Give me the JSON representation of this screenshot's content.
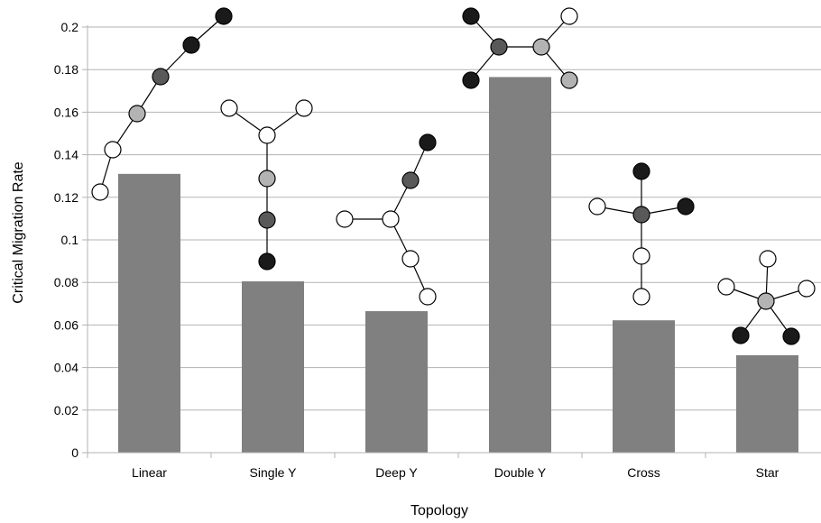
{
  "chart_data": {
    "type": "bar",
    "xlabel": "Topology",
    "ylabel": "Critical Migration Rate",
    "categories": [
      "Linear",
      "Single Y",
      "Deep Y",
      "Double Y",
      "Cross",
      "Star"
    ],
    "values": [
      0.131,
      0.0805,
      0.0665,
      0.1765,
      0.0622,
      0.0458
    ],
    "ylim": [
      0,
      0.2
    ],
    "yticks": [
      0,
      0.02,
      0.04,
      0.06,
      0.08,
      0.1,
      0.12,
      0.14,
      0.16,
      0.18,
      0.2
    ],
    "ytick_labels": [
      "0",
      "0.02",
      "0.04",
      "0.06",
      "0.08",
      "0.1",
      "0.12",
      "0.14",
      "0.16",
      "0.18",
      "0.2"
    ],
    "grid": true,
    "legend": "none",
    "colors": {
      "bar": "#808080",
      "grid": "#b3b3b3",
      "node_white": "#ffffff",
      "node_light": "#b3b3b3",
      "node_mid": "#595959",
      "node_dark": "#1a1a1a"
    }
  }
}
